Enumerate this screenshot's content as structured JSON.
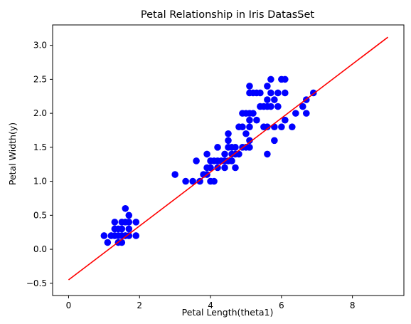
{
  "chart_data": {
    "type": "scatter",
    "title": "Petal Relationship in Iris DatasSet",
    "xlabel": "Petal Length(theta1)",
    "ylabel": "Petal Width(y)",
    "xlim": [
      -0.45,
      9.45
    ],
    "ylim": [
      -0.68,
      3.3
    ],
    "xticks": [
      0,
      2,
      4,
      6,
      8
    ],
    "xtick_labels": [
      "0",
      "2",
      "4",
      "6",
      "8"
    ],
    "yticks": [
      -0.5,
      0.0,
      0.5,
      1.0,
      1.5,
      2.0,
      2.5,
      3.0
    ],
    "ytick_labels": [
      "−0.5",
      "0.0",
      "0.5",
      "1.0",
      "1.5",
      "2.0",
      "2.5",
      "3.0"
    ],
    "grid": false,
    "colors": {
      "points": "#0000ff",
      "line": "#ff0000",
      "axes": "#000000"
    },
    "series": [
      {
        "type": "scatter",
        "points": [
          [
            1.0,
            0.2
          ],
          [
            1.1,
            0.1
          ],
          [
            1.2,
            0.2
          ],
          [
            1.3,
            0.2
          ],
          [
            1.3,
            0.3
          ],
          [
            1.3,
            0.4
          ],
          [
            1.4,
            0.1
          ],
          [
            1.4,
            0.2
          ],
          [
            1.4,
            0.3
          ],
          [
            1.5,
            0.1
          ],
          [
            1.5,
            0.2
          ],
          [
            1.5,
            0.3
          ],
          [
            1.5,
            0.4
          ],
          [
            1.6,
            0.2
          ],
          [
            1.6,
            0.4
          ],
          [
            1.6,
            0.6
          ],
          [
            1.7,
            0.2
          ],
          [
            1.7,
            0.3
          ],
          [
            1.7,
            0.4
          ],
          [
            1.7,
            0.5
          ],
          [
            1.9,
            0.2
          ],
          [
            1.9,
            0.4
          ],
          [
            3.0,
            1.1
          ],
          [
            3.3,
            1.0
          ],
          [
            3.5,
            1.0
          ],
          [
            3.6,
            1.3
          ],
          [
            3.7,
            1.0
          ],
          [
            3.8,
            1.1
          ],
          [
            3.9,
            1.1
          ],
          [
            3.9,
            1.2
          ],
          [
            3.9,
            1.4
          ],
          [
            4.0,
            1.0
          ],
          [
            4.0,
            1.2
          ],
          [
            4.0,
            1.3
          ],
          [
            4.1,
            1.0
          ],
          [
            4.1,
            1.3
          ],
          [
            4.2,
            1.2
          ],
          [
            4.2,
            1.3
          ],
          [
            4.2,
            1.5
          ],
          [
            4.3,
            1.3
          ],
          [
            4.4,
            1.2
          ],
          [
            4.4,
            1.3
          ],
          [
            4.4,
            1.4
          ],
          [
            4.5,
            1.3
          ],
          [
            4.5,
            1.5
          ],
          [
            4.5,
            1.6
          ],
          [
            4.5,
            1.7
          ],
          [
            4.6,
            1.3
          ],
          [
            4.6,
            1.4
          ],
          [
            4.6,
            1.5
          ],
          [
            4.7,
            1.2
          ],
          [
            4.7,
            1.4
          ],
          [
            4.7,
            1.5
          ],
          [
            4.8,
            1.4
          ],
          [
            4.8,
            1.8
          ],
          [
            4.9,
            1.5
          ],
          [
            4.9,
            1.8
          ],
          [
            4.9,
            2.0
          ],
          [
            5.0,
            1.5
          ],
          [
            5.0,
            1.7
          ],
          [
            5.0,
            2.0
          ],
          [
            5.1,
            1.5
          ],
          [
            5.1,
            1.6
          ],
          [
            5.1,
            1.8
          ],
          [
            5.1,
            1.9
          ],
          [
            5.1,
            2.0
          ],
          [
            5.1,
            2.3
          ],
          [
            5.1,
            2.4
          ],
          [
            5.2,
            2.0
          ],
          [
            5.2,
            2.3
          ],
          [
            5.3,
            1.9
          ],
          [
            5.3,
            2.3
          ],
          [
            5.4,
            2.1
          ],
          [
            5.4,
            2.3
          ],
          [
            5.5,
            1.8
          ],
          [
            5.5,
            2.1
          ],
          [
            5.6,
            1.4
          ],
          [
            5.6,
            1.8
          ],
          [
            5.6,
            2.1
          ],
          [
            5.6,
            2.2
          ],
          [
            5.6,
            2.4
          ],
          [
            5.7,
            2.1
          ],
          [
            5.7,
            2.3
          ],
          [
            5.7,
            2.5
          ],
          [
            5.8,
            1.6
          ],
          [
            5.8,
            1.8
          ],
          [
            5.8,
            2.2
          ],
          [
            5.9,
            2.1
          ],
          [
            5.9,
            2.3
          ],
          [
            6.0,
            1.8
          ],
          [
            6.0,
            2.5
          ],
          [
            6.1,
            1.9
          ],
          [
            6.1,
            2.3
          ],
          [
            6.1,
            2.5
          ],
          [
            6.3,
            1.8
          ],
          [
            6.4,
            2.0
          ],
          [
            6.6,
            2.1
          ],
          [
            6.7,
            2.0
          ],
          [
            6.7,
            2.2
          ],
          [
            6.9,
            2.3
          ]
        ]
      },
      {
        "type": "line",
        "points": [
          [
            0,
            -0.45
          ],
          [
            9,
            3.12
          ]
        ]
      }
    ]
  }
}
